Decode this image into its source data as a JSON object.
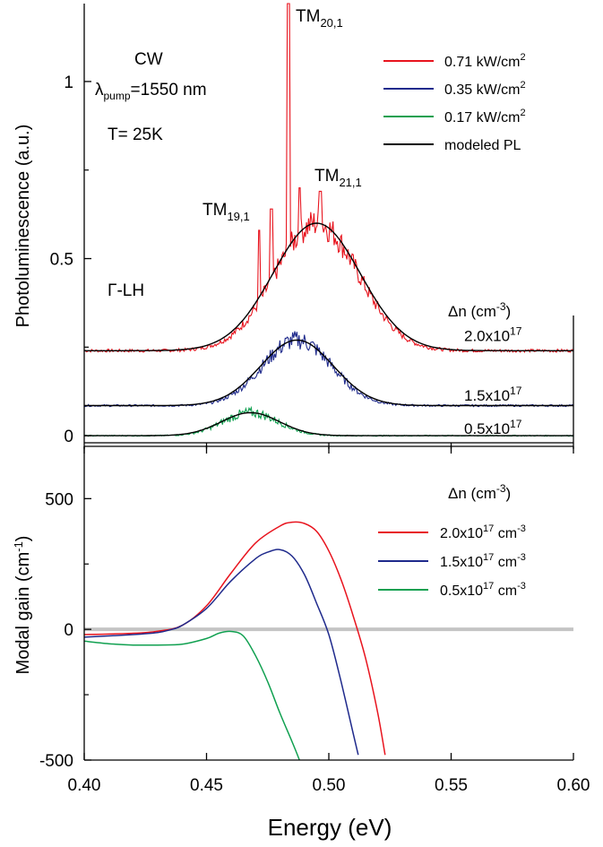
{
  "chart_data": [
    {
      "type": "line",
      "ylabel": "Photoluminescence (a.u.)",
      "xlim": [
        0.4,
        0.6
      ],
      "ylim": [
        -0.02,
        1.22
      ],
      "y_ticks": [
        {
          "value": 0,
          "label": "0"
        },
        {
          "value": 0.5,
          "label": "0.5"
        },
        {
          "value": 1,
          "label": "1"
        }
      ],
      "annotations": {
        "cw": "CW",
        "lambda_prefix": "λ",
        "lambda_sub": "pump",
        "lambda_value": "=1550 nm",
        "temperature": "T= 25K",
        "band": "Γ-LH",
        "peaks": [
          {
            "main": "TM",
            "sub": "19,1",
            "x": 0.471
          },
          {
            "main": "TM",
            "sub": "20,1",
            "x": 0.4835
          },
          {
            "main": "TM",
            "sub": "21,1",
            "x": 0.497
          }
        ]
      },
      "dn_header": {
        "main": "Δn (cm",
        "sup": "-3",
        "close": ")"
      },
      "dn_labels": [
        {
          "mant": "2.0x10",
          "exp": "17",
          "y": 0.283
        },
        {
          "mant": "1.5x10",
          "exp": "17",
          "y": 0.114
        },
        {
          "mant": "0.5x10",
          "exp": "17",
          "y": 0.021
        }
      ],
      "legend": [
        {
          "label": "0.71 kW/cm",
          "sup": "2",
          "color": "#e8141e"
        },
        {
          "label": "0.35  kW/cm",
          "sup": "2",
          "color": "#1f2a8c"
        },
        {
          "label": "0.17 kW/cm",
          "sup": "2",
          "color": "#10a050"
        },
        {
          "label": "modeled PL",
          "sup": "",
          "color": "#000000"
        }
      ],
      "series": [
        {
          "name": "0.71 kW/cm2",
          "color": "#e8141e",
          "offset": 0.24,
          "peak_center": 0.495,
          "peak_width": 0.024,
          "peak_height": 0.36,
          "noise": 0.035
        },
        {
          "name": "0.35  kW/cm2",
          "color": "#1f2a8c",
          "offset": 0.085,
          "peak_center": 0.487,
          "peak_width": 0.02,
          "peak_height": 0.185,
          "noise": 0.022
        },
        {
          "name": "0.17 kW/cm2",
          "color": "#10a050",
          "offset": 0.0,
          "peak_center": 0.468,
          "peak_width": 0.016,
          "peak_height": 0.065,
          "noise": 0.012
        },
        {
          "name": "modeled PL",
          "color": "#000000",
          "curves": [
            {
              "offset": 0.24,
              "center": 0.495,
              "width": 0.024,
              "height": 0.36
            },
            {
              "offset": 0.085,
              "center": 0.487,
              "width": 0.02,
              "height": 0.185
            },
            {
              "offset": 0.0,
              "center": 0.468,
              "width": 0.016,
              "height": 0.065
            }
          ]
        }
      ],
      "spikes": [
        {
          "x": 0.4715,
          "y": 0.58
        },
        {
          "x": 0.4765,
          "y": 0.64
        },
        {
          "x": 0.4835,
          "y": 1.22
        },
        {
          "x": 0.488,
          "y": 0.7
        },
        {
          "x": 0.4965,
          "y": 0.69
        }
      ]
    },
    {
      "type": "line",
      "xlabel": "Energy (eV)",
      "ylabel": "Modal gain (cm⁻¹)",
      "ylabel_main": "Modal gain (cm",
      "ylabel_sup": "-1",
      "ylabel_close": ")",
      "xlim": [
        0.4,
        0.6
      ],
      "ylim": [
        -500,
        700
      ],
      "x_ticks": [
        {
          "value": 0.4,
          "label": "0.40"
        },
        {
          "value": 0.45,
          "label": "0.45"
        },
        {
          "value": 0.5,
          "label": "0.50"
        },
        {
          "value": 0.55,
          "label": "0.55"
        },
        {
          "value": 0.6,
          "label": "0.60"
        }
      ],
      "y_ticks": [
        {
          "value": -500,
          "label": "-500"
        },
        {
          "value": 0,
          "label": "0"
        },
        {
          "value": 500,
          "label": "500"
        }
      ],
      "zero_line_color": "#c4c4c4",
      "dn_header": {
        "main": "Δn (cm",
        "sup": "-3",
        "close": ")"
      },
      "legend": [
        {
          "label": "2.0x10",
          "sup1": "17",
          "unit": " cm",
          "sup2": "-3",
          "color": "#e8141e"
        },
        {
          "label": "1.5x10",
          "sup1": "17",
          "unit": " cm",
          "sup2": "-3",
          "color": "#1f2a8c"
        },
        {
          "label": "0.5x10",
          "sup1": "17",
          "unit": " cm",
          "sup2": "-3",
          "color": "#10a050"
        }
      ],
      "series": [
        {
          "name": "2.0x10^17 cm^-3",
          "color": "#e8141e",
          "x": [
            0.4,
            0.42,
            0.43,
            0.44,
            0.45,
            0.46,
            0.47,
            0.48,
            0.485,
            0.49,
            0.495,
            0.5,
            0.505,
            0.51,
            0.515,
            0.52,
            0.523
          ],
          "y": [
            -20,
            -15,
            -7,
            15,
            90,
            215,
            330,
            395,
            410,
            405,
            375,
            300,
            190,
            50,
            -110,
            -320,
            -480
          ]
        },
        {
          "name": "1.5x10^17 cm^-3",
          "color": "#1f2a8c",
          "x": [
            0.4,
            0.42,
            0.43,
            0.435,
            0.44,
            0.45,
            0.46,
            0.47,
            0.475,
            0.48,
            0.485,
            0.49,
            0.495,
            0.5,
            0.505,
            0.51,
            0.512
          ],
          "y": [
            -30,
            -20,
            -12,
            -2,
            15,
            80,
            185,
            270,
            295,
            305,
            280,
            210,
            100,
            -20,
            -200,
            -400,
            -480
          ]
        },
        {
          "name": "0.5x10^17 cm^-3",
          "color": "#10a050",
          "x": [
            0.4,
            0.41,
            0.42,
            0.43,
            0.44,
            0.45,
            0.455,
            0.46,
            0.465,
            0.47,
            0.475,
            0.48,
            0.485,
            0.488
          ],
          "y": [
            -45,
            -55,
            -60,
            -60,
            -57,
            -35,
            -15,
            -8,
            -25,
            -100,
            -200,
            -320,
            -430,
            -500
          ]
        }
      ]
    }
  ]
}
